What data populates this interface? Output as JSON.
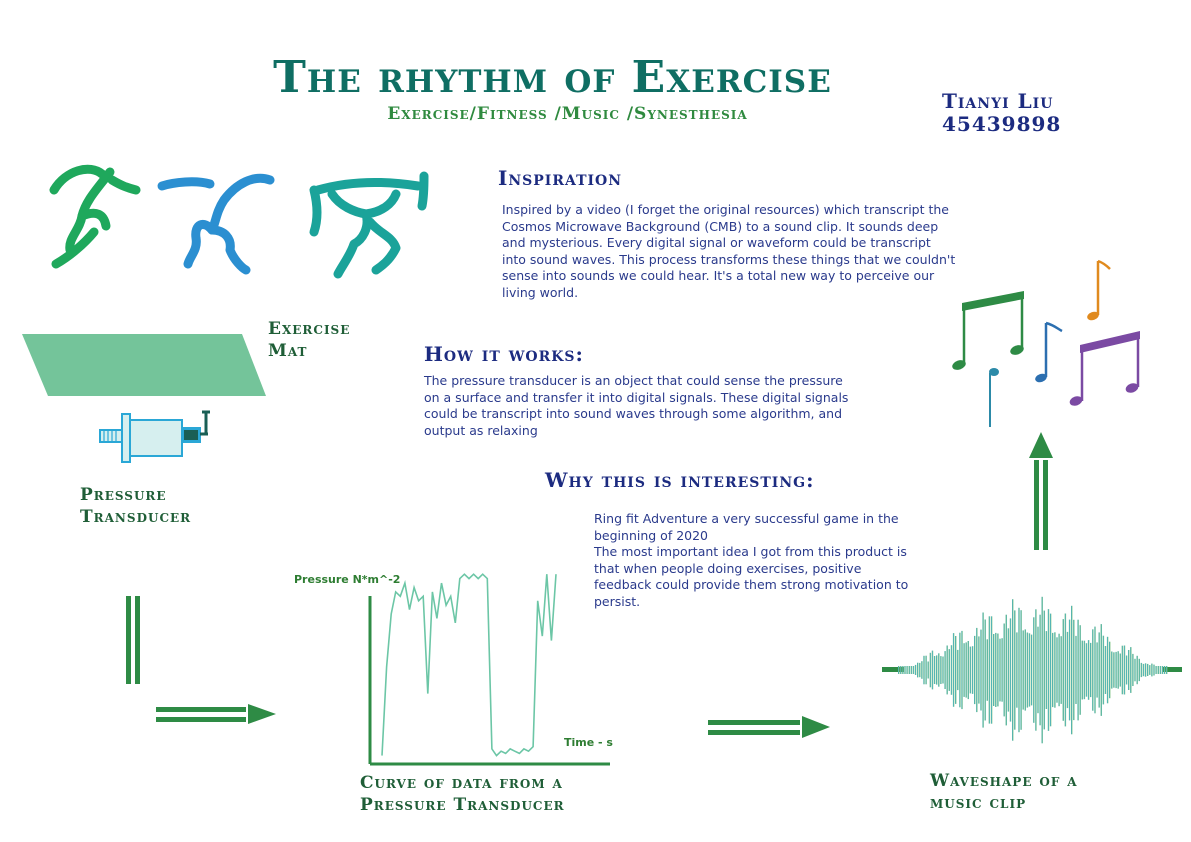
{
  "header": {
    "title": "The rhythm of Exercise",
    "subtitle": "Exercise/Fitness /Music /Synesthesia",
    "author_name": "Tianyi Liu",
    "author_id": "45439898"
  },
  "sections": {
    "inspiration": {
      "heading": "Inspiration",
      "text": "Inspired by a video (I forget the original resources) which transcript the Cosmos Microwave Background (CMB) to a sound clip. It sounds deep and mysterious. Every digital signal or waveform could be transcript into sound waves. This process transforms these things that we couldn't sense into sounds we could hear. It's a total new way to perceive our living world."
    },
    "how_it_works": {
      "heading": "How it works:",
      "text": "The pressure transducer is an object that could sense the pressure on a surface and transfer it into digital signals. These digital signals could be transcript into sound waves through some algorithm, and output as relaxing"
    },
    "why_interesting": {
      "heading": "Why this is interesting:",
      "line1": "Ring fit Adventure  a very successful game in the beginning of 2020",
      "line2": "The most important idea I got from this product is that when people doing exercises, positive feedback could provide them strong motivation to persist."
    }
  },
  "labels": {
    "mat_line1": "Exercise",
    "mat_line2": "Mat",
    "transducer_line1": "Pressure",
    "transducer_line2": "Transducer",
    "curve_line1": "Curve of data from a",
    "curve_line2": "Pressure Transducer",
    "wave_line1": "Waveshape of a",
    "wave_line2": "music clip"
  },
  "chart_data": {
    "type": "line",
    "ylabel": "Pressure   N*m^-2",
    "xlabel": "Time - s",
    "series": [
      {
        "values": [
          2,
          42,
          66,
          76,
          74,
          80,
          68,
          78,
          72,
          74,
          30,
          76,
          64,
          80,
          70,
          74,
          62,
          82,
          84,
          82,
          84,
          82,
          84,
          82,
          5,
          2,
          4,
          3,
          5,
          4,
          3,
          5,
          4,
          6,
          72,
          56,
          84,
          54,
          84
        ]
      }
    ]
  },
  "colors": {
    "title": "#0f6e63",
    "subtitle": "#2f8a3f",
    "heading": "#1c2b80",
    "arrow": "#2e8b45",
    "mat": "#74c49a",
    "transducer": "#2aa7d6",
    "note_green": "#2e8b45",
    "note_blue": "#2c6fb0",
    "note_orange": "#e08a1e",
    "note_purple": "#7b4aa3"
  },
  "icons": [
    "runner-icon",
    "dancer-icon",
    "weightlifter-icon",
    "exercise-mat-icon",
    "pressure-transducer-icon",
    "music-notes-icon",
    "waveform-icon"
  ]
}
